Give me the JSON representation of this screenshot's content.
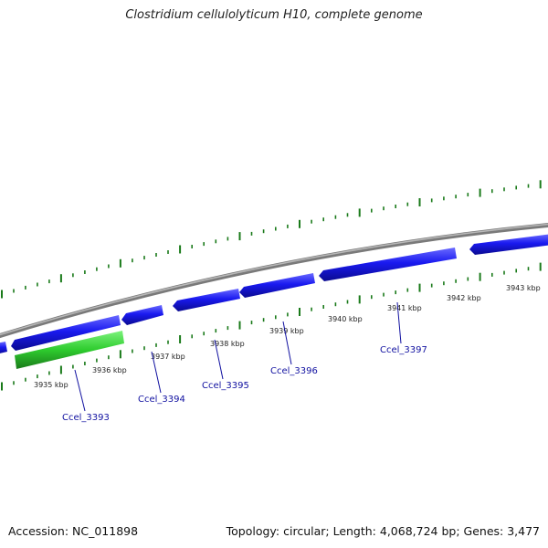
{
  "title": "Clostridium cellulolyticum H10, complete genome",
  "footer": {
    "accession": "Accession: NC_011898",
    "summary": "Topology: circular; Length: 4,068,724 bp; Genes: 3,477"
  },
  "colors": {
    "backbone": "#8a8a8a",
    "gene_forward": "#1414e8",
    "gene_highlight": "#2ecc2e",
    "tick": "#1a7a1a",
    "gene_label": "#1010a0"
  },
  "scale_labels": [
    "3935 kbp",
    "3936 kbp",
    "3937 kbp",
    "3938 kbp",
    "3939 kbp",
    "3940 kbp",
    "3941 kbp",
    "3942 kbp",
    "3943 kbp"
  ],
  "gene_labels": [
    "Ccel_3393",
    "Ccel_3394",
    "Ccel_3395",
    "Ccel_3396",
    "Ccel_3397"
  ]
}
